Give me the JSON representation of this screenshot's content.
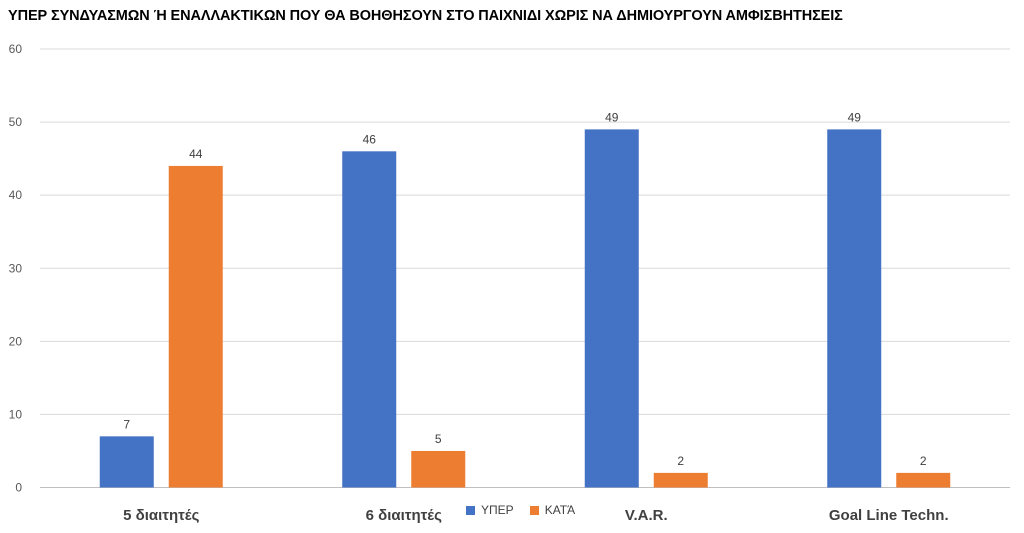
{
  "chart_data": {
    "type": "bar",
    "title": "ΥΠΕΡ ΣΥΝΔΥΑΣΜΩΝ Ή ΕΝΑΛΛΑΚΤΙΚΩΝ ΠΟΥ ΘΑ ΒΟΗΘΗΣΟΥΝ ΣΤΟ ΠΑΙΧΝΙΔΙ ΧΩΡΙΣ ΝΑ ΔΗΜΙΟΥΡΓΟΥΝ ΑΜΦΙΣΒΗΤΗΣΕΙΣ",
    "categories": [
      "5 διαιτητές",
      "6 διαιτητές",
      "V.A.R.",
      "Goal Line Techn."
    ],
    "series": [
      {
        "name": "ΥΠΕΡ",
        "values": [
          7,
          46,
          49,
          49
        ],
        "color": "#4472C4"
      },
      {
        "name": "ΚΑΤΆ",
        "values": [
          44,
          5,
          2,
          2
        ],
        "color": "#ED7D31"
      }
    ],
    "ylim": [
      0,
      60
    ],
    "yticks": [
      0,
      10,
      20,
      30,
      40,
      50,
      60
    ],
    "grid": true,
    "data_labels": true,
    "legend_position": "bottom"
  }
}
